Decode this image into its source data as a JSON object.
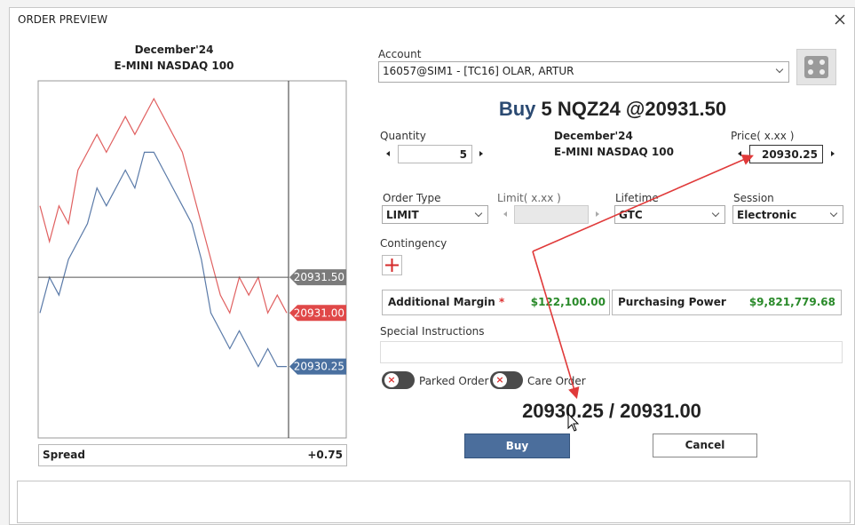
{
  "window": {
    "title": "ORDER PREVIEW"
  },
  "instrument": {
    "month": "December'24",
    "name": "E-MINI NASDAQ 100"
  },
  "chart_data": {
    "type": "line",
    "ylim": [
      20929.25,
      20934.25
    ],
    "series": [
      {
        "color": "#e06060",
        "values": [
          20932.5,
          20932.0,
          20932.5,
          20932.25,
          20933.0,
          20933.25,
          20933.5,
          20933.25,
          20933.5,
          20933.75,
          20933.5,
          20933.75,
          20934.0,
          20933.75,
          20933.5,
          20933.25,
          20932.75,
          20932.25,
          20931.75,
          20931.25,
          20931.0,
          20931.5,
          20931.25,
          20931.5,
          20931.0,
          20931.25,
          20931.0
        ]
      },
      {
        "color": "#5a7aa8",
        "values": [
          20931.0,
          20931.5,
          20931.25,
          20931.75,
          20932.0,
          20932.25,
          20932.75,
          20932.5,
          20932.75,
          20933.0,
          20932.75,
          20933.25,
          20933.25,
          20933.0,
          20932.75,
          20932.5,
          20932.25,
          20931.75,
          20931.0,
          20930.75,
          20930.5,
          20930.75,
          20930.5,
          20930.25,
          20930.5,
          20930.25,
          20930.25
        ]
      }
    ],
    "price_tags": [
      {
        "value": 20931.5,
        "label": "20931.50",
        "color": "#7b7b7b"
      },
      {
        "value": 20931.0,
        "label": "20931.00",
        "color": "#e04848"
      },
      {
        "value": 20930.25,
        "label": "20930.25",
        "color": "#4a70a0"
      }
    ]
  },
  "spread": {
    "label": "Spread",
    "value": "+0.75"
  },
  "account": {
    "label": "Account",
    "value": "16057@SIM1 - [TC16] OLAR, ARTUR"
  },
  "headline": {
    "side": "Buy",
    "detail": "5 NQZ24 @20931.50"
  },
  "quantity": {
    "label": "Quantity",
    "value": "5"
  },
  "price": {
    "label": "Price( x.xx )",
    "value": "20930.25"
  },
  "order_type": {
    "label": "Order Type",
    "value": "LIMIT"
  },
  "limit": {
    "label": "Limit( x.xx )"
  },
  "lifetime": {
    "label": "Lifetime",
    "value": "GTC"
  },
  "session": {
    "label": "Session",
    "value": "Electronic"
  },
  "contingency": {
    "label": "Contingency"
  },
  "margin": {
    "label": "Additional Margin",
    "required": "*",
    "value": "$122,100.00"
  },
  "purchasing_power": {
    "label": "Purchasing Power",
    "value": "$9,821,779.68"
  },
  "special_instructions": {
    "label": "Special Instructions"
  },
  "toggles": [
    "Parked Order",
    "Care Order"
  ],
  "quote": "20930.25 / 20931.00",
  "buttons": {
    "buy": "Buy",
    "cancel": "Cancel"
  }
}
